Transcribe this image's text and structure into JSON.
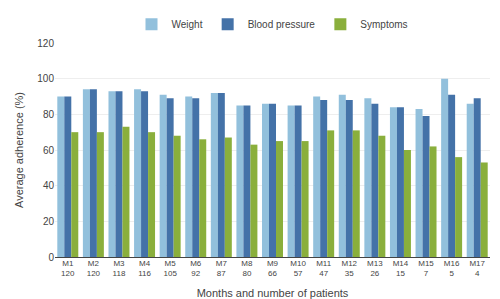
{
  "chart_data": {
    "type": "bar",
    "categories": [
      "M1\n120",
      "M2\n120",
      "M3\n118",
      "M4\n116",
      "M5\n105",
      "M6\n92",
      "M7\n87",
      "M8\n80",
      "M9\n66",
      "M10\n57",
      "M11\n47",
      "M12\n35",
      "M13\n26",
      "M14\n15",
      "M15\n7",
      "M16\n5",
      "M17\n4"
    ],
    "series": [
      {
        "name": "Weight",
        "color": "#92C0DC",
        "values": [
          90,
          94,
          93,
          94,
          91,
          90,
          92,
          85,
          86,
          85,
          90,
          91,
          89,
          84,
          83,
          100,
          86
        ]
      },
      {
        "name": "Blood pressure",
        "color": "#4472A8",
        "values": [
          90,
          94,
          93,
          93,
          89,
          89,
          92,
          85,
          86,
          85,
          88,
          88,
          86,
          84,
          79,
          91,
          89
        ]
      },
      {
        "name": "Symptoms",
        "color": "#8AAF3C",
        "values": [
          70,
          70,
          73,
          70,
          68,
          66,
          67,
          63,
          65,
          65,
          71,
          71,
          68,
          60,
          62,
          56,
          53
        ]
      }
    ],
    "xlabel": "Months and number of patients",
    "ylabel": "Average adherence (%)",
    "ylim": [
      0,
      120
    ],
    "yticks": [
      0,
      20,
      40,
      60,
      80,
      100,
      120
    ],
    "grid": true,
    "legend": "top"
  }
}
